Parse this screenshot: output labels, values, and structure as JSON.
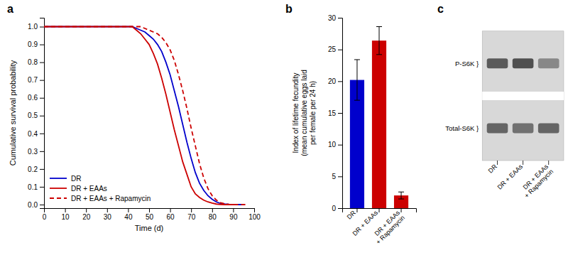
{
  "chart_data": [
    {
      "type": "line",
      "title": "a",
      "x_label": "Time (d)",
      "y_label": "Cumulative survival probability",
      "xlim": [
        0,
        100
      ],
      "ylim": [
        -0.02,
        1.05
      ],
      "xticks": [
        0,
        10,
        20,
        30,
        40,
        50,
        60,
        70,
        80,
        90,
        100
      ],
      "yticks": [
        {
          "value": 0.0,
          "label": "0.0"
        },
        0.1,
        0.2,
        0.3,
        0.4,
        0.5,
        0.6,
        0.7,
        0.8,
        0.9,
        {
          "value": 1.0,
          "label": "1.0"
        }
      ],
      "legend": "lower left",
      "series": [
        {
          "name": "DR",
          "color": "#0000cc",
          "line_style": "solid",
          "x": [
            0,
            42,
            44,
            46,
            48,
            50,
            52,
            54,
            56,
            58,
            60,
            62,
            64,
            66,
            68,
            70,
            72,
            74,
            76,
            78,
            80,
            82,
            84,
            86,
            88,
            90,
            92,
            94
          ],
          "values": [
            1.0,
            1.0,
            0.99,
            0.98,
            0.97,
            0.95,
            0.93,
            0.9,
            0.86,
            0.8,
            0.73,
            0.64,
            0.55,
            0.45,
            0.35,
            0.26,
            0.18,
            0.12,
            0.08,
            0.05,
            0.03,
            0.015,
            0.007,
            0.003,
            0.001,
            0.0,
            0.0,
            0.0
          ]
        },
        {
          "name": "DR + EAAs",
          "color": "#cc0000",
          "line_style": "solid",
          "x": [
            0,
            42,
            44,
            46,
            48,
            50,
            52,
            54,
            56,
            58,
            60,
            62,
            64,
            66,
            68,
            70,
            72,
            74,
            76,
            78,
            80,
            82,
            84,
            86,
            88,
            90,
            92
          ],
          "values": [
            1.0,
            1.0,
            0.98,
            0.96,
            0.93,
            0.9,
            0.85,
            0.79,
            0.71,
            0.62,
            0.52,
            0.42,
            0.33,
            0.24,
            0.17,
            0.1,
            0.06,
            0.04,
            0.025,
            0.015,
            0.008,
            0.003,
            0.001,
            0.0,
            0.0,
            0.0,
            0.0
          ]
        },
        {
          "name": "DR + EAAs + Rapamycin",
          "color": "#cc0000",
          "line_style": "dashed",
          "x": [
            0,
            44,
            46,
            48,
            50,
            52,
            54,
            56,
            58,
            60,
            62,
            64,
            66,
            68,
            70,
            72,
            74,
            76,
            78,
            80,
            82,
            84,
            86,
            88,
            90,
            92,
            94,
            96
          ],
          "values": [
            1.0,
            1.0,
            1.0,
            0.99,
            0.98,
            0.97,
            0.96,
            0.94,
            0.91,
            0.87,
            0.81,
            0.73,
            0.64,
            0.54,
            0.43,
            0.33,
            0.23,
            0.15,
            0.09,
            0.05,
            0.025,
            0.01,
            0.004,
            0.001,
            0.0,
            0.0,
            0.0,
            0.0
          ]
        }
      ]
    },
    {
      "type": "bar",
      "title": "b",
      "y_label": "Index of lifetime fecundity\n(mean cumulative eggs laid\nper female per 24 h)",
      "ylim": [
        0,
        30
      ],
      "yticks": [
        0,
        5,
        10,
        15,
        20,
        25,
        30
      ],
      "categories": [
        "DR",
        "DR + EAAs",
        "DR + EAAs\n+ Rapamycin"
      ],
      "values": [
        20.2,
        26.4,
        2.0
      ],
      "errors": [
        3.2,
        2.2,
        0.55
      ],
      "colors": [
        "#0000cc",
        "#cc0000",
        "#cc0000"
      ]
    },
    {
      "type": "blot",
      "title": "c",
      "color": "#d8d8d8",
      "categories": [
        "DR",
        "DR + EAAs",
        "DR + EAAs\n+ Rapamycin"
      ],
      "series": [
        {
          "name": "P-S6K }",
          "values": [
            0.3,
            0.25,
            0.5
          ]
        },
        {
          "name": "Total-S6K }",
          "values": [
            0.35,
            0.4,
            0.35
          ]
        }
      ]
    }
  ]
}
